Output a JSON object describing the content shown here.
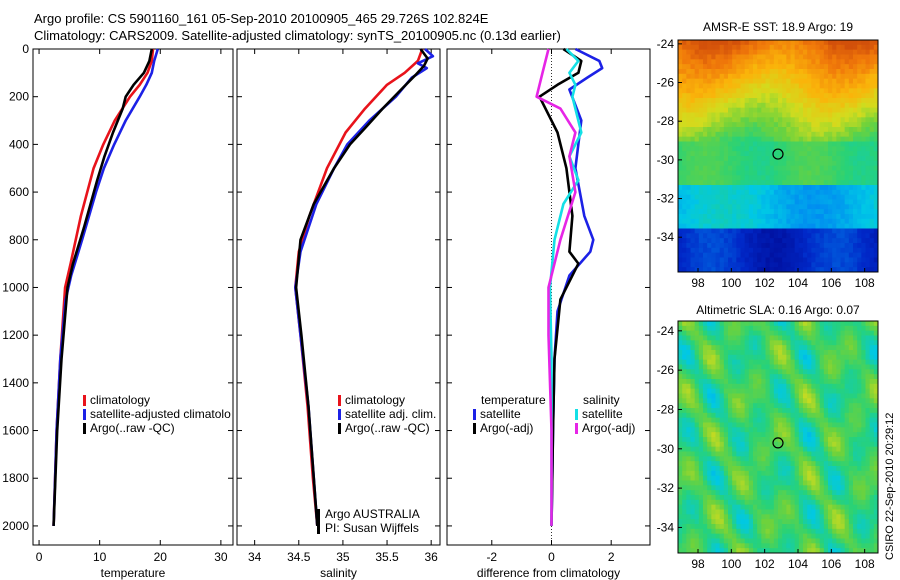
{
  "header": {
    "line1": "Argo profile: CS 5901160_161 05-Sep-2010 20100905_465 29.726S 102.824E",
    "line2": "Climatology: CARS2009. Satellite-adjusted climatology: synTS_20100905.nc (0.13d earlier)"
  },
  "footer_stamp": "CSIRO 22-Sep-2010 20:29:12",
  "colors": {
    "red": "#e8131b",
    "blue": "#1c21e6",
    "black": "#000000",
    "cyan": "#14e0e6",
    "magenta": "#e625e6"
  },
  "chart_data": [
    {
      "type": "line",
      "xlabel": "temperature",
      "ylabel": "",
      "xlim": [
        -1,
        32
      ],
      "ylim": [
        2080,
        0
      ],
      "xticks": [
        0,
        10,
        20,
        30
      ],
      "yticks": [
        0,
        200,
        400,
        600,
        800,
        1000,
        1200,
        1400,
        1600,
        1800,
        2000
      ],
      "legend_items": [
        "climatology",
        "satellite-adjusted climatolo",
        "Argo(..raw -QC)"
      ],
      "legend_location": "lower-right",
      "series": [
        {
          "name": "climatology",
          "color": "red",
          "x": [
            18.8,
            18.6,
            17.9,
            16.6,
            15.0,
            12.5,
            10.6,
            9.0,
            6.9,
            5.2,
            4.3,
            3.5,
            2.9,
            2.4
          ],
          "y": [
            0,
            50,
            100,
            150,
            200,
            300,
            400,
            500,
            700,
            900,
            1000,
            1300,
            1600,
            2000
          ]
        },
        {
          "name": "satellite-adjusted climatolo",
          "color": "blue",
          "x": [
            19.6,
            19.0,
            18.6,
            17.7,
            16.6,
            14.3,
            12.4,
            10.7,
            9.4,
            7.1,
            5.3,
            4.4,
            3.5,
            2.9,
            2.4
          ],
          "y": [
            0,
            50,
            100,
            150,
            200,
            300,
            400,
            500,
            600,
            800,
            950,
            1050,
            1300,
            1600,
            2000
          ]
        },
        {
          "name": "Argo(..raw -QC)",
          "color": "black",
          "x": [
            18.6,
            18.2,
            17.3,
            15.6,
            14.3,
            13.8,
            12.2,
            10.8,
            9.6,
            7.4,
            5.6,
            4.7,
            3.7,
            3.0,
            2.4
          ],
          "y": [
            0,
            50,
            100,
            150,
            200,
            250,
            350,
            450,
            550,
            750,
            900,
            1000,
            1300,
            1600,
            2000
          ]
        }
      ]
    },
    {
      "type": "line",
      "xlabel": "salinity",
      "ylabel": "",
      "xlim": [
        33.8,
        36.1
      ],
      "ylim": [
        2080,
        0
      ],
      "xticks": [
        34,
        34.5,
        35,
        35.5,
        36
      ],
      "xtick_labels": [
        "34",
        "34.5",
        "35",
        "35.5",
        "36"
      ],
      "legend_items": [
        "climatology",
        "satellite adj. clim.",
        "Argo(..raw -QC)"
      ],
      "legend_location": "lower-right",
      "annotations": [
        "Argo AUSTRALIA",
        "PI: Susan Wijffels"
      ],
      "series": [
        {
          "name": "climatology",
          "color": "red",
          "x": [
            35.9,
            35.85,
            35.7,
            35.5,
            35.25,
            35.03,
            34.82,
            34.62,
            34.5,
            34.46,
            34.52,
            34.6,
            34.66,
            34.71
          ],
          "y": [
            0,
            50,
            100,
            150,
            250,
            350,
            500,
            700,
            850,
            1000,
            1200,
            1500,
            1800,
            2000
          ]
        },
        {
          "name": "satellite adj. clim.",
          "color": "blue",
          "x": [
            35.93,
            36.02,
            35.85,
            35.95,
            35.78,
            35.6,
            35.3,
            35.05,
            34.9,
            34.7,
            34.52,
            34.46,
            34.52,
            34.61,
            34.67,
            34.71
          ],
          "y": [
            0,
            30,
            60,
            80,
            120,
            200,
            300,
            400,
            500,
            650,
            850,
            1000,
            1200,
            1500,
            1800,
            2000
          ]
        },
        {
          "name": "Argo(..raw -QC)",
          "color": "black",
          "x": [
            35.88,
            35.96,
            35.92,
            35.82,
            35.66,
            35.45,
            35.28,
            35.08,
            34.9,
            34.67,
            34.52,
            34.47,
            34.53,
            34.61,
            34.67,
            34.71
          ],
          "y": [
            0,
            40,
            70,
            110,
            170,
            250,
            320,
            400,
            500,
            650,
            800,
            1000,
            1200,
            1500,
            1800,
            2000
          ]
        }
      ]
    },
    {
      "type": "line",
      "xlabel": "difference from climatology",
      "ylabel": "",
      "xlim": [
        -3.5,
        3.3
      ],
      "ylim": [
        2080,
        0
      ],
      "xticks": [
        -2,
        0,
        2
      ],
      "zero_line": "dotted",
      "legend_items": [
        "temperature",
        "satellite",
        "Argo(-adj)",
        "salinity",
        "satellite",
        "Argo(-adj)"
      ],
      "legend_location": "lower",
      "series": [
        {
          "name": "temperature satellite",
          "color": "blue",
          "x": [
            0.8,
            1.6,
            1.7,
            1.2,
            0.6,
            1.0,
            0.8,
            1.1,
            1.4,
            1.3,
            0.6,
            0.2,
            0.1,
            0.05,
            0.0
          ],
          "y": [
            0,
            50,
            80,
            120,
            170,
            300,
            500,
            700,
            800,
            850,
            950,
            1100,
            1300,
            1600,
            2000
          ]
        },
        {
          "name": "temperature Argo(-adj)",
          "color": "black",
          "x": [
            0.4,
            1.0,
            0.9,
            0.2,
            -0.4,
            0.2,
            0.5,
            0.7,
            0.6,
            0.9,
            0.3,
            0.1,
            0.05,
            0.0
          ],
          "y": [
            0,
            50,
            100,
            150,
            200,
            350,
            500,
            700,
            850,
            900,
            1050,
            1300,
            1600,
            2000
          ]
        },
        {
          "name": "salinity satellite",
          "color": "cyan",
          "x": [
            0.5,
            0.9,
            0.6,
            0.8,
            0.7,
            1.0,
            0.6,
            0.9,
            0.4,
            0.1,
            -0.05,
            0.0,
            0.0
          ],
          "y": [
            0,
            50,
            100,
            150,
            200,
            350,
            450,
            550,
            650,
            800,
            1000,
            1300,
            2000
          ]
        },
        {
          "name": "salinity Argo(-adj)",
          "color": "magenta",
          "x": [
            -0.1,
            -0.3,
            -0.5,
            0.3,
            0.8,
            0.6,
            0.8,
            0.3,
            -0.1,
            -0.1,
            0.0,
            0.0
          ],
          "y": [
            0,
            100,
            200,
            250,
            350,
            450,
            600,
            800,
            1000,
            1200,
            1600,
            2000
          ]
        }
      ]
    },
    {
      "type": "heatmap",
      "title": "AMSR-E SST: 18.9 Argo: 19",
      "xlim": [
        96.8,
        108.8
      ],
      "ylim": [
        -35.8,
        -23.8
      ],
      "xticks": [
        98,
        100,
        102,
        104,
        106,
        108
      ],
      "yticks": [
        -24,
        -26,
        -28,
        -30,
        -32,
        -34
      ],
      "marker": {
        "x": 102.8,
        "y": -29.7
      }
    },
    {
      "type": "heatmap",
      "title": "Altimetric SLA: 0.16 Argo: 0.07",
      "xlim": [
        96.8,
        108.8
      ],
      "ylim": [
        -35.3,
        -23.5
      ],
      "xticks": [
        98,
        100,
        102,
        104,
        106,
        108
      ],
      "yticks": [
        -24,
        -26,
        -28,
        -30,
        -32,
        -34
      ],
      "marker": {
        "x": 102.8,
        "y": -29.7
      }
    }
  ]
}
